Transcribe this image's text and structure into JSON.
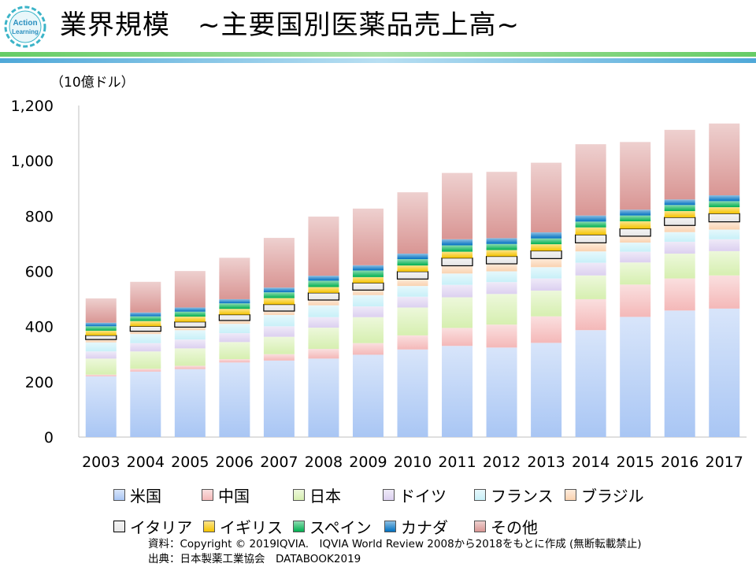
{
  "logo": {
    "line1": "Action",
    "line2": "Learning"
  },
  "title": "業界規模　~主要国別医薬品売上高~",
  "unit_label": "（10億ドル）",
  "chart_data": {
    "type": "bar",
    "stacked": true,
    "categories": [
      "2003",
      "2004",
      "2005",
      "2006",
      "2007",
      "2008",
      "2009",
      "2010",
      "2011",
      "2012",
      "2013",
      "2014",
      "2015",
      "2016",
      "2017"
    ],
    "ylim": [
      0,
      1200
    ],
    "yticks": [
      0,
      200,
      400,
      600,
      800,
      1000,
      1200
    ],
    "ytick_labels": [
      "0",
      "200",
      "400",
      "600",
      "800",
      "1,000",
      "1,200"
    ],
    "grid": false,
    "legend_position": "bottom",
    "series": [
      {
        "name": "米国",
        "color": "#a9c6f4",
        "values": [
          220,
          237,
          246,
          270,
          277,
          284,
          298,
          317,
          330,
          324,
          341,
          387,
          435,
          458,
          465
        ]
      },
      {
        "name": "中国",
        "color": "#f4b8b8",
        "values": [
          6,
          10,
          12,
          12,
          23,
          35,
          42,
          51,
          65,
          83,
          96,
          112,
          117,
          116,
          120
        ]
      },
      {
        "name": "日本",
        "color": "#d6efb0",
        "values": [
          58,
          63,
          63,
          62,
          63,
          77,
          94,
          101,
          111,
          111,
          93,
          86,
          80,
          90,
          88
        ]
      },
      {
        "name": "ドイツ",
        "color": "#dcd0f0",
        "values": [
          26,
          30,
          32,
          32,
          38,
          38,
          39,
          39,
          45,
          43,
          44,
          46,
          39,
          43,
          43
        ]
      },
      {
        "name": "フランス",
        "color": "#c8f0f8",
        "values": [
          33,
          33,
          34,
          34,
          41,
          43,
          41,
          39,
          41,
          39,
          41,
          41,
          33,
          35,
          35
        ]
      },
      {
        "name": "ブラジル",
        "color": "#fad2b0",
        "values": [
          10,
          10,
          11,
          12,
          14,
          19,
          18,
          25,
          28,
          27,
          31,
          31,
          23,
          24,
          28
        ]
      },
      {
        "name": "イタリア",
        "color": "#e6e6e6",
        "values": [
          15,
          18,
          19,
          21,
          24,
          26,
          26,
          27,
          28,
          27,
          28,
          29,
          27,
          29,
          30
        ]
      },
      {
        "name": "イギリス",
        "color": "#f5c400",
        "values": [
          17,
          19,
          19,
          21,
          23,
          21,
          21,
          22,
          23,
          23,
          24,
          27,
          27,
          23,
          23
        ]
      },
      {
        "name": "スペイン",
        "color": "#00b050",
        "values": [
          16,
          17,
          18,
          20,
          21,
          23,
          24,
          23,
          23,
          22,
          21,
          21,
          21,
          22,
          22
        ]
      },
      {
        "name": "カナダ",
        "color": "#0070c0",
        "values": [
          13,
          14,
          15,
          15,
          17,
          18,
          19,
          20,
          22,
          21,
          22,
          22,
          21,
          20,
          21
        ]
      },
      {
        "name": "その他",
        "color": "#d99694",
        "values": [
          88,
          111,
          132,
          150,
          180,
          214,
          205,
          222,
          240,
          240,
          252,
          258,
          245,
          252,
          260
        ]
      }
    ]
  },
  "source_lines": [
    "資料：Copyright © 2019IQVIA.　IQVIA World Review 2008から2018をもとに作成 (無断転載禁止)",
    "出典：日本製薬工業協会　DATABOOK2019"
  ]
}
